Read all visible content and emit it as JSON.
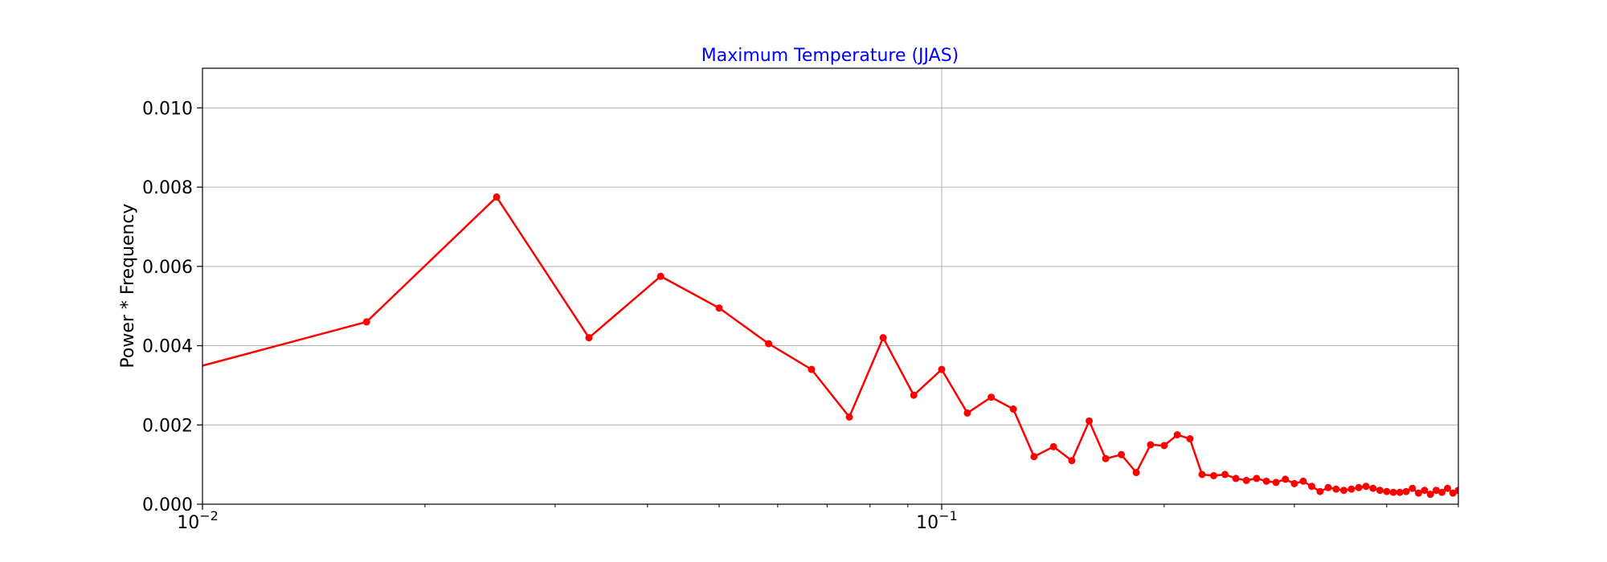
{
  "chart_data": {
    "type": "line",
    "title": "Maximum Temperature (JJAS)",
    "xlabel": "",
    "ylabel": "Power * Frequency",
    "x_scale": "log",
    "xlim": [
      0.01,
      0.5
    ],
    "ylim": [
      0,
      0.011
    ],
    "grid": true,
    "xticks": [
      {
        "value": 0.01,
        "base": "10",
        "exp": "−2"
      },
      {
        "value": 0.1,
        "base": "10",
        "exp": "−1"
      }
    ],
    "yticks": [
      {
        "value": 0,
        "label": "0.000"
      },
      {
        "value": 0.002,
        "label": "0.002"
      },
      {
        "value": 0.004,
        "label": "0.004"
      },
      {
        "value": 0.006,
        "label": "0.006"
      },
      {
        "value": 0.008,
        "label": "0.008"
      },
      {
        "value": 0.01,
        "label": "0.010"
      }
    ],
    "color": "#ff0000",
    "title_color": "#0000ff",
    "series": [
      {
        "x": [
          0.00833,
          0.01667,
          0.025,
          0.03333,
          0.04167,
          0.05,
          0.05833,
          0.06667,
          0.075,
          0.08333,
          0.09167,
          0.1,
          0.10833,
          0.11667,
          0.125,
          0.13333,
          0.14167,
          0.15,
          0.15833,
          0.16667,
          0.175,
          0.18333,
          0.19167,
          0.2,
          0.20833,
          0.21667,
          0.225,
          0.23333,
          0.24167,
          0.25,
          0.25833,
          0.26667,
          0.275,
          0.28333,
          0.29167,
          0.3,
          0.30833,
          0.31667,
          0.325,
          0.33333,
          0.34167,
          0.35,
          0.35833,
          0.36667,
          0.375,
          0.38333,
          0.39167,
          0.4,
          0.40833,
          0.41667,
          0.425,
          0.43333,
          0.44167,
          0.45,
          0.45833,
          0.46667,
          0.475,
          0.48333,
          0.49167,
          0.5
        ],
        "y": [
          0.0031,
          0.0046,
          0.00775,
          0.0042,
          0.00575,
          0.00495,
          0.00405,
          0.0034,
          0.0022,
          0.0042,
          0.00275,
          0.0034,
          0.0023,
          0.0027,
          0.0024,
          0.0012,
          0.00145,
          0.0011,
          0.0021,
          0.00115,
          0.00125,
          0.0008,
          0.0015,
          0.00148,
          0.00175,
          0.00165,
          0.00075,
          0.00072,
          0.00075,
          0.00065,
          0.0006,
          0.00065,
          0.00058,
          0.00055,
          0.00063,
          0.00052,
          0.00058,
          0.00045,
          0.00032,
          0.00042,
          0.00038,
          0.00035,
          0.00038,
          0.00042,
          0.00045,
          0.0004,
          0.00035,
          0.00032,
          0.0003,
          0.0003,
          0.00032,
          0.0004,
          0.00028,
          0.00035,
          0.00025,
          0.00035,
          0.0003,
          0.0004,
          0.00028,
          0.00035
        ]
      }
    ]
  }
}
